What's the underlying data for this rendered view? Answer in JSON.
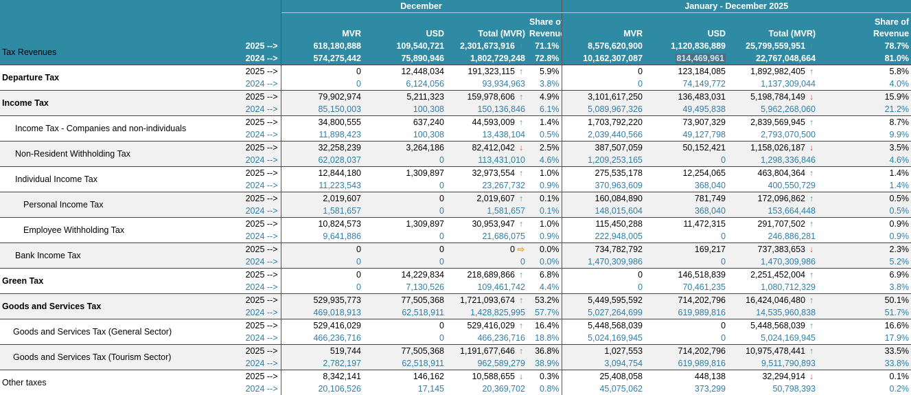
{
  "headers": {
    "group1": "December",
    "group2": "January - December 2025",
    "cols": [
      "MVR",
      "USD",
      "Total (MVR)",
      "Share of Revenue",
      "MVR",
      "USD",
      "Total (MVR)",
      "Share of Revenue"
    ],
    "share_line1": "Share of",
    "share_line2": "Revenue"
  },
  "summary": {
    "label": "Tax Revenues",
    "y2025": {
      "year": "2025 -->",
      "dec_mvr": "618,180,888",
      "dec_usd": "109,540,721",
      "dec_total": "2,301,673,916",
      "dec_trend": "up",
      "dec_share": "71.1%",
      "ytd_mvr": "8,576,620,900",
      "ytd_usd": "1,120,836,889",
      "ytd_total": "25,799,559,951",
      "ytd_trend": "up",
      "ytd_share": "78.7%"
    },
    "y2024": {
      "year": "2024 -->",
      "dec_mvr": "574,275,442",
      "dec_usd": "75,890,946",
      "dec_total": "1,802,729,248",
      "dec_share": "72.8%",
      "ytd_mvr": "10,162,307,087",
      "ytd_usd": "814,469,961",
      "ytd_total": "22,767,048,664",
      "ytd_share": "81.0%"
    }
  },
  "rows": [
    {
      "label": "Departure Tax",
      "level": "main",
      "y2025": {
        "year": "2025 -->",
        "dec_mvr": "0",
        "dec_usd": "12,448,034",
        "dec_total": "191,323,115",
        "dec_trend": "up",
        "dec_share": "5.9%",
        "ytd_mvr": "0",
        "ytd_usd": "123,184,085",
        "ytd_total": "1,892,982,405",
        "ytd_trend": "up",
        "ytd_share": "5.8%"
      },
      "y2024": {
        "year": "2024 -->",
        "dec_mvr": "0",
        "dec_usd": "6,124,056",
        "dec_total": "93,934,963",
        "dec_share": "3.8%",
        "ytd_mvr": "0",
        "ytd_usd": "74,149,772",
        "ytd_total": "1,137,309,044",
        "ytd_share": "4.0%"
      }
    },
    {
      "label": "Income Tax",
      "level": "main",
      "y2025": {
        "year": "2025 -->",
        "dec_mvr": "79,902,974",
        "dec_usd": "5,211,323",
        "dec_total": "159,978,606",
        "dec_trend": "up",
        "dec_share": "4.9%",
        "ytd_mvr": "3,101,617,250",
        "ytd_usd": "136,483,031",
        "ytd_total": "5,198,784,149",
        "ytd_trend": "down",
        "ytd_share": "15.9%"
      },
      "y2024": {
        "year": "2024 -->",
        "dec_mvr": "85,150,003",
        "dec_usd": "100,308",
        "dec_total": "150,136,846",
        "dec_share": "6.1%",
        "ytd_mvr": "5,089,967,326",
        "ytd_usd": "49,495,838",
        "ytd_total": "5,962,268,060",
        "ytd_share": "21.2%"
      }
    },
    {
      "label": "Income Tax - Companies and non-individuals",
      "level": "l1",
      "y2025": {
        "year": "2025 -->",
        "dec_mvr": "34,800,555",
        "dec_usd": "637,240",
        "dec_total": "44,593,009",
        "dec_trend": "up",
        "dec_share": "1.4%",
        "ytd_mvr": "1,703,792,220",
        "ytd_usd": "73,907,329",
        "ytd_total": "2,839,569,945",
        "ytd_trend": "up",
        "ytd_share": "8.7%"
      },
      "y2024": {
        "year": "2024 -->",
        "dec_mvr": "11,898,423",
        "dec_usd": "100,308",
        "dec_total": "13,438,104",
        "dec_share": "0.5%",
        "ytd_mvr": "2,039,440,566",
        "ytd_usd": "49,127,798",
        "ytd_total": "2,793,070,500",
        "ytd_share": "9.9%"
      }
    },
    {
      "label": "Non-Resident Withholding Tax",
      "level": "l1",
      "y2025": {
        "year": "2025 -->",
        "dec_mvr": "32,258,239",
        "dec_usd": "3,264,186",
        "dec_total": "82,412,042",
        "dec_trend": "down",
        "dec_share": "2.5%",
        "ytd_mvr": "387,507,059",
        "ytd_usd": "50,152,421",
        "ytd_total": "1,158,026,187",
        "ytd_trend": "down",
        "ytd_share": "3.5%"
      },
      "y2024": {
        "year": "2024 -->",
        "dec_mvr": "62,028,037",
        "dec_usd": "0",
        "dec_total": "113,431,010",
        "dec_share": "4.6%",
        "ytd_mvr": "1,209,253,165",
        "ytd_usd": "0",
        "ytd_total": "1,298,336,846",
        "ytd_share": "4.6%"
      }
    },
    {
      "label": "Individual Income Tax",
      "level": "l1",
      "y2025": {
        "year": "2025 -->",
        "dec_mvr": "12,844,180",
        "dec_usd": "1,309,897",
        "dec_total": "32,973,554",
        "dec_trend": "up",
        "dec_share": "1.0%",
        "ytd_mvr": "275,535,178",
        "ytd_usd": "12,254,065",
        "ytd_total": "463,804,364",
        "ytd_trend": "up",
        "ytd_share": "1.4%"
      },
      "y2024": {
        "year": "2024 -->",
        "dec_mvr": "11,223,543",
        "dec_usd": "0",
        "dec_total": "23,267,732",
        "dec_share": "0.9%",
        "ytd_mvr": "370,963,609",
        "ytd_usd": "368,040",
        "ytd_total": "400,550,729",
        "ytd_share": "1.4%"
      }
    },
    {
      "label": "Personal Income Tax",
      "level": "l2",
      "y2025": {
        "year": "2025 -->",
        "dec_mvr": "2,019,607",
        "dec_usd": "0",
        "dec_total": "2,019,607",
        "dec_trend": "up",
        "dec_share": "0.1%",
        "ytd_mvr": "160,084,890",
        "ytd_usd": "781,749",
        "ytd_total": "172,096,862",
        "ytd_trend": "up",
        "ytd_share": "0.5%"
      },
      "y2024": {
        "year": "2024 -->",
        "dec_mvr": "1,581,657",
        "dec_usd": "0",
        "dec_total": "1,581,657",
        "dec_share": "0.1%",
        "ytd_mvr": "148,015,604",
        "ytd_usd": "368,040",
        "ytd_total": "153,664,448",
        "ytd_share": "0.5%"
      }
    },
    {
      "label": "Employee Withholding Tax",
      "level": "l2",
      "y2025": {
        "year": "2025 -->",
        "dec_mvr": "10,824,573",
        "dec_usd": "1,309,897",
        "dec_total": "30,953,947",
        "dec_trend": "up",
        "dec_share": "1.0%",
        "ytd_mvr": "115,450,288",
        "ytd_usd": "11,472,315",
        "ytd_total": "291,707,502",
        "ytd_trend": "up",
        "ytd_share": "0.9%"
      },
      "y2024": {
        "year": "2024 -->",
        "dec_mvr": "9,641,886",
        "dec_usd": "0",
        "dec_total": "21,686,075",
        "dec_share": "0.9%",
        "ytd_mvr": "222,948,005",
        "ytd_usd": "0",
        "ytd_total": "246,886,281",
        "ytd_share": "0.9%"
      }
    },
    {
      "label": "Bank Income Tax",
      "level": "l1",
      "y2025": {
        "year": "2025 -->",
        "dec_mvr": "0",
        "dec_usd": "0",
        "dec_total": "0",
        "dec_trend": "flat",
        "dec_share": "0.0%",
        "ytd_mvr": "734,782,792",
        "ytd_usd": "169,217",
        "ytd_total": "737,383,653",
        "ytd_trend": "down",
        "ytd_share": "2.3%"
      },
      "y2024": {
        "year": "2024 -->",
        "dec_mvr": "0",
        "dec_usd": "0",
        "dec_total": "0",
        "dec_share": "0.0%",
        "ytd_mvr": "1,470,309,986",
        "ytd_usd": "0",
        "ytd_total": "1,470,309,986",
        "ytd_share": "5.2%"
      }
    },
    {
      "label": "Green Tax",
      "level": "main",
      "y2025": {
        "year": "2025 -->",
        "dec_mvr": "0",
        "dec_usd": "14,229,834",
        "dec_total": "218,689,866",
        "dec_trend": "up",
        "dec_share": "6.8%",
        "ytd_mvr": "0",
        "ytd_usd": "146,518,839",
        "ytd_total": "2,251,452,004",
        "ytd_trend": "up",
        "ytd_share": "6.9%"
      },
      "y2024": {
        "year": "2024 -->",
        "dec_mvr": "0",
        "dec_usd": "7,130,526",
        "dec_total": "109,461,742",
        "dec_share": "4.4%",
        "ytd_mvr": "0",
        "ytd_usd": "70,461,235",
        "ytd_total": "1,080,712,329",
        "ytd_share": "3.8%"
      }
    },
    {
      "label": "Goods and Services Tax",
      "level": "main",
      "y2025": {
        "year": "2025 -->",
        "dec_mvr": "529,935,773",
        "dec_usd": "77,505,368",
        "dec_total": "1,721,093,674",
        "dec_trend": "up",
        "dec_share": "53.2%",
        "ytd_mvr": "5,449,595,592",
        "ytd_usd": "714,202,796",
        "ytd_total": "16,424,046,480",
        "ytd_trend": "up",
        "ytd_share": "50.1%"
      },
      "y2024": {
        "year": "2024 -->",
        "dec_mvr": "469,018,913",
        "dec_usd": "62,518,911",
        "dec_total": "1,428,825,995",
        "dec_share": "57.7%",
        "ytd_mvr": "5,027,264,699",
        "ytd_usd": "619,989,816",
        "ytd_total": "14,535,960,838",
        "ytd_share": "51.7%"
      }
    },
    {
      "label": "Goods and Services Tax (General Sector)",
      "level": "l1b",
      "y2025": {
        "year": "2025 -->",
        "dec_mvr": "529,416,029",
        "dec_usd": "0",
        "dec_total": "529,416,029",
        "dec_trend": "up",
        "dec_share": "16.4%",
        "ytd_mvr": "5,448,568,039",
        "ytd_usd": "0",
        "ytd_total": "5,448,568,039",
        "ytd_trend": "up",
        "ytd_share": "16.6%"
      },
      "y2024": {
        "year": "2024 -->",
        "dec_mvr": "466,236,716",
        "dec_usd": "0",
        "dec_total": "466,236,716",
        "dec_share": "18.8%",
        "ytd_mvr": "5,024,169,945",
        "ytd_usd": "0",
        "ytd_total": "5,024,169,945",
        "ytd_share": "17.9%"
      }
    },
    {
      "label": "Goods and Services Tax (Tourism Sector)",
      "level": "l1b",
      "y2025": {
        "year": "2025 -->",
        "dec_mvr": "519,744",
        "dec_usd": "77,505,368",
        "dec_total": "1,191,677,646",
        "dec_trend": "up",
        "dec_share": "36.8%",
        "ytd_mvr": "1,027,553",
        "ytd_usd": "714,202,796",
        "ytd_total": "10,975,478,441",
        "ytd_trend": "up",
        "ytd_share": "33.5%"
      },
      "y2024": {
        "year": "2024 -->",
        "dec_mvr": "2,782,197",
        "dec_usd": "62,518,911",
        "dec_total": "962,589,279",
        "dec_share": "38.9%",
        "ytd_mvr": "3,094,754",
        "ytd_usd": "619,989,816",
        "ytd_total": "9,511,790,893",
        "ytd_share": "33.8%"
      }
    },
    {
      "label": "Other taxes",
      "level": "plain",
      "y2025": {
        "year": "2025 -->",
        "dec_mvr": "8,342,141",
        "dec_usd": "146,162",
        "dec_total": "10,588,655",
        "dec_trend": "down",
        "dec_share": "0.3%",
        "ytd_mvr": "25,408,058",
        "ytd_usd": "448,138",
        "ytd_total": "32,294,914",
        "ytd_trend": "down",
        "ytd_share": "0.1%"
      },
      "y2024": {
        "year": "2024 -->",
        "dec_mvr": "20,106,526",
        "dec_usd": "17,145",
        "dec_total": "20,369,702",
        "dec_share": "0.8%",
        "ytd_mvr": "45,075,062",
        "ytd_usd": "373,299",
        "ytd_total": "50,798,393",
        "ytd_share": "0.2%"
      }
    }
  ],
  "icons": {
    "up": "arrow-up-icon",
    "down": "arrow-down-icon",
    "flat": "arrow-right-icon"
  },
  "colors": {
    "header_bg": "#2f8aa3",
    "year2024_text": "#2f7fa8",
    "up": "#5a9a80",
    "down": "#d9553b",
    "flat": "#e3a83a"
  }
}
